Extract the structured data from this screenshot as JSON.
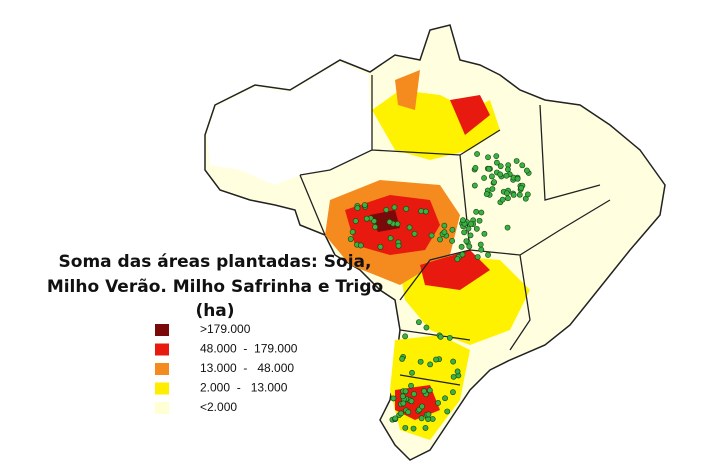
{
  "map": {
    "title_lines": [
      "Soma das áreas plantadas: Soja,",
      "Milho Verão. Milho Safrinha e Trigo",
      "(ha)"
    ],
    "legend": [
      {
        "label": ">179.000",
        "color": "#7a0a0a"
      },
      {
        "label": "48.000  -  179.000",
        "color": "#e8190f"
      },
      {
        "label": "13.000  -   48.000",
        "color": "#f58a1f"
      },
      {
        "label": "2.000  -   13.000",
        "color": "#ffee00"
      },
      {
        "label": "<2.000",
        "color": "#ffffd4"
      }
    ]
  }
}
